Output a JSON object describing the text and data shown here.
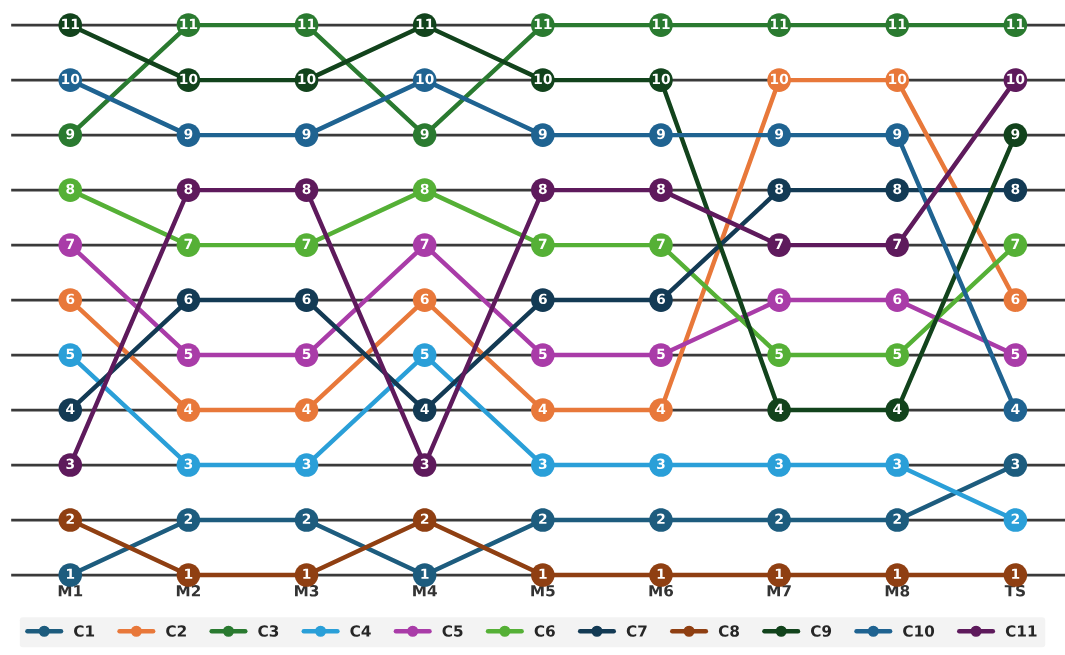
{
  "chart_data": {
    "type": "line",
    "categories": [
      "M1",
      "M2",
      "M3",
      "M4",
      "M5",
      "M6",
      "M7",
      "M8",
      "TS"
    ],
    "series": [
      {
        "name": "C1",
        "color": "#1d5c7e",
        "values": [
          1,
          2,
          2,
          1,
          2,
          2,
          2,
          2,
          3
        ]
      },
      {
        "name": "C2",
        "color": "#e8783a",
        "values": [
          6,
          4,
          4,
          6,
          4,
          4,
          10,
          10,
          6
        ]
      },
      {
        "name": "C3",
        "color": "#2a7a30",
        "values": [
          9,
          11,
          11,
          9,
          11,
          11,
          11,
          11,
          11
        ]
      },
      {
        "name": "C4",
        "color": "#2a9fd8",
        "values": [
          5,
          3,
          3,
          5,
          3,
          3,
          3,
          3,
          2
        ]
      },
      {
        "name": "C5",
        "color": "#a93ca8",
        "values": [
          7,
          5,
          5,
          7,
          5,
          5,
          6,
          6,
          5
        ]
      },
      {
        "name": "C6",
        "color": "#55b036",
        "values": [
          8,
          7,
          7,
          8,
          7,
          7,
          5,
          5,
          7
        ]
      },
      {
        "name": "C7",
        "color": "#133a54",
        "values": [
          4,
          6,
          6,
          4,
          6,
          6,
          8,
          8,
          8
        ]
      },
      {
        "name": "C8",
        "color": "#8f3f12",
        "values": [
          2,
          1,
          1,
          2,
          1,
          1,
          1,
          1,
          1
        ]
      },
      {
        "name": "C9",
        "color": "#12431c",
        "values": [
          11,
          10,
          10,
          11,
          10,
          10,
          4,
          4,
          9
        ]
      },
      {
        "name": "C10",
        "color": "#1f6391",
        "values": [
          10,
          9,
          9,
          10,
          9,
          9,
          9,
          9,
          4
        ]
      },
      {
        "name": "C11",
        "color": "#5e1a5c",
        "values": [
          3,
          8,
          8,
          3,
          8,
          8,
          7,
          7,
          10
        ]
      }
    ],
    "yticks": [
      {
        "value": 1,
        "label": null
      },
      {
        "value": 2,
        "label": null
      },
      {
        "value": 3,
        "label": null
      },
      {
        "value": 4,
        "label": null
      },
      {
        "value": 5,
        "label": null
      },
      {
        "value": 6,
        "label": null
      },
      {
        "value": 7,
        "label": null
      },
      {
        "value": 8,
        "label": null
      },
      {
        "value": 9,
        "label": null
      },
      {
        "value": 10,
        "label": null
      },
      {
        "value": 11,
        "label": null
      }
    ],
    "tick_labels": "x",
    "grid": "y",
    "legend": "bottom",
    "marker": "circle",
    "line_style": "solid",
    "data_labels": true
  }
}
